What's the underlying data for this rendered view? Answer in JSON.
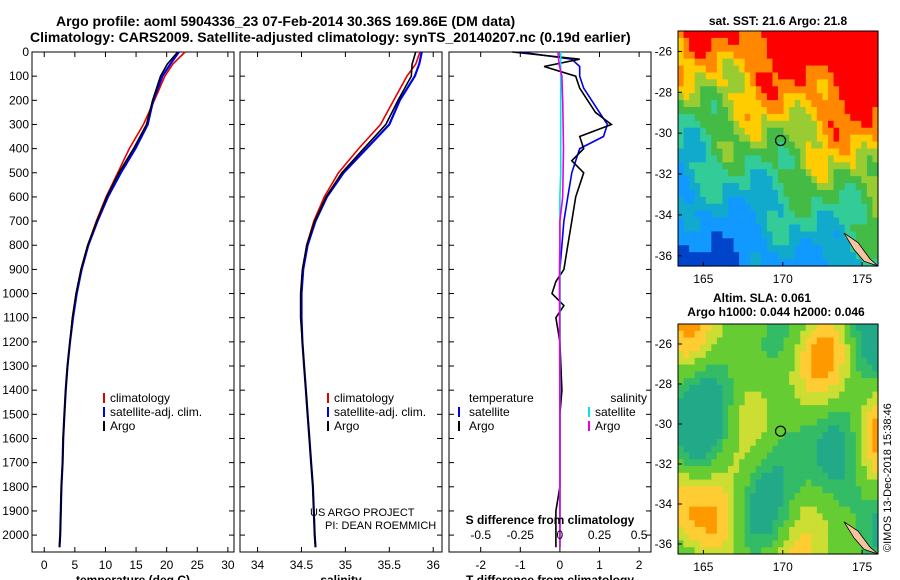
{
  "header": {
    "line1": "Argo profile: aoml 5904336_23 07-Feb-2014 30.36S 169.86E (DM data)",
    "line2": "Climatology: CARS2009. Satellite-adjusted climatology: synTS_20140207.nc (0.19d earlier)"
  },
  "colors": {
    "climatology": "#e60000",
    "satellite": "#0000ee",
    "argo": "#000000",
    "salinity_satellite": "#00e5e5",
    "salinity_argo": "#e600e6"
  },
  "credit": {
    "line1": "US ARGO PROJECT",
    "line2": "PI: DEAN ROEMMICH"
  },
  "sst_map": {
    "title": "sat. SST: 21.6 Argo: 21.8"
  },
  "sla_map": {
    "title1": "Altim. SLA: 0.061",
    "title2": "Argo h1000: 0.044 h2000: 0.046"
  },
  "map_axes": {
    "lat_ticks": [
      "-26",
      "-28",
      "-30",
      "-32",
      "-34",
      "-36"
    ],
    "lon_ticks": [
      "165",
      "170",
      "175"
    ]
  },
  "watermark": "©IMOS 13-Dec-2018 15:38:46",
  "chart_data": [
    {
      "type": "line",
      "name": "temperature",
      "xlabel": "temperature (deg C)",
      "ylabel": "",
      "xlim": [
        -2,
        31
      ],
      "ylim": [
        2070,
        0
      ],
      "xticks": [
        0,
        5,
        10,
        15,
        20,
        25,
        30
      ],
      "yticks": [
        0,
        100,
        200,
        300,
        400,
        500,
        600,
        700,
        800,
        900,
        1000,
        1100,
        1200,
        1300,
        1400,
        1500,
        1600,
        1700,
        1800,
        1900,
        2000
      ],
      "legend": [
        "climatology",
        "satellite-adj. clim.",
        "Argo"
      ],
      "series": [
        {
          "name": "climatology",
          "color": "#e60000",
          "depth": [
            0,
            50,
            100,
            200,
            300,
            400,
            500,
            600,
            700,
            800,
            900,
            1000,
            1100,
            1200,
            1300,
            1400,
            1500,
            1600,
            1700,
            1800,
            1900,
            2000,
            2050
          ],
          "values": [
            23.0,
            21.0,
            19.7,
            18.0,
            16.2,
            13.9,
            12.0,
            10.1,
            8.5,
            7.1,
            6.0,
            5.2,
            4.6,
            4.2,
            3.8,
            3.5,
            3.3,
            3.1,
            3.0,
            2.8,
            2.7,
            2.6,
            2.5
          ]
        },
        {
          "name": "satellite-adj. clim.",
          "color": "#0000ee",
          "depth": [
            0,
            50,
            100,
            200,
            300,
            400,
            500,
            600,
            700,
            800,
            900,
            1000,
            1100,
            1200,
            1300,
            1400,
            1500,
            1600,
            1700,
            1800,
            1900,
            2000,
            2050
          ],
          "values": [
            22.0,
            20.6,
            19.3,
            17.8,
            16.9,
            14.9,
            12.5,
            10.4,
            8.7,
            7.2,
            6.1,
            5.3,
            4.7,
            4.2,
            3.8,
            3.5,
            3.3,
            3.1,
            3.0,
            2.8,
            2.7,
            2.6,
            2.5
          ]
        },
        {
          "name": "Argo",
          "color": "#000000",
          "depth": [
            0,
            50,
            100,
            200,
            300,
            400,
            500,
            600,
            700,
            800,
            900,
            1000,
            1100,
            1200,
            1300,
            1400,
            1500,
            1600,
            1700,
            1800,
            1900,
            2000,
            2050
          ],
          "values": [
            21.8,
            20.1,
            19.0,
            17.7,
            16.7,
            14.6,
            12.2,
            10.2,
            8.6,
            7.1,
            6.0,
            5.2,
            4.6,
            4.2,
            3.8,
            3.5,
            3.3,
            3.1,
            3.0,
            2.8,
            2.7,
            2.6,
            2.5
          ]
        }
      ]
    },
    {
      "type": "line",
      "name": "salinity",
      "xlabel": "salinity",
      "ylabel": "",
      "xlim": [
        33.8,
        36.1
      ],
      "ylim": [
        2070,
        0
      ],
      "xticks": [
        34,
        34.5,
        35,
        35.5,
        36
      ],
      "legend": [
        "climatology",
        "satellite-adj. clim.",
        "Argo"
      ],
      "series": [
        {
          "name": "climatology",
          "color": "#e60000",
          "depth": [
            0,
            50,
            100,
            200,
            300,
            400,
            500,
            600,
            700,
            800,
            900,
            1000,
            1100,
            1200,
            1300,
            1400,
            1500,
            1600,
            1700,
            1800,
            1900,
            2000,
            2050
          ],
          "values": [
            35.85,
            35.8,
            35.7,
            35.55,
            35.4,
            35.15,
            34.92,
            34.76,
            34.64,
            34.56,
            34.52,
            34.5,
            34.5,
            34.51,
            34.53,
            34.55,
            34.57,
            34.59,
            34.61,
            34.63,
            34.64,
            34.65,
            34.66
          ]
        },
        {
          "name": "satellite-adj. clim.",
          "color": "#0000ee",
          "depth": [
            0,
            50,
            100,
            200,
            300,
            400,
            500,
            600,
            700,
            800,
            900,
            1000,
            1100,
            1200,
            1300,
            1400,
            1500,
            1600,
            1700,
            1800,
            1900,
            2000,
            2050
          ],
          "values": [
            35.87,
            35.84,
            35.79,
            35.62,
            35.5,
            35.24,
            34.98,
            34.79,
            34.66,
            34.57,
            34.52,
            34.5,
            34.5,
            34.51,
            34.53,
            34.55,
            34.57,
            34.59,
            34.61,
            34.63,
            34.64,
            34.65,
            34.66
          ]
        },
        {
          "name": "Argo",
          "color": "#000000",
          "depth": [
            0,
            50,
            100,
            200,
            300,
            400,
            500,
            600,
            700,
            800,
            900,
            1000,
            1100,
            1200,
            1300,
            1400,
            1500,
            1600,
            1700,
            1800,
            1900,
            2000,
            2050
          ],
          "values": [
            35.8,
            35.76,
            35.75,
            35.6,
            35.46,
            35.21,
            34.96,
            34.78,
            34.65,
            34.56,
            34.51,
            34.49,
            34.49,
            34.51,
            34.53,
            34.55,
            34.57,
            34.59,
            34.61,
            34.63,
            34.64,
            34.65,
            34.66
          ]
        }
      ]
    },
    {
      "type": "line",
      "name": "difference",
      "xlabel": "T difference from climatology",
      "xlabel_top": "S difference from climatology",
      "xlim": [
        -2.8,
        2.3
      ],
      "ylim": [
        2070,
        0
      ],
      "xticks": [
        -2,
        -1,
        0,
        1,
        2
      ],
      "xticks_s": [
        "-0.5",
        "-0.25",
        "0",
        "0.25",
        "0.5"
      ],
      "legend_temperature_title": "temperature",
      "legend_salinity_title": "salinity",
      "legend_temperature": [
        "satellite",
        "Argo"
      ],
      "legend_salinity": [
        "satellite",
        "Argo"
      ],
      "series": [
        {
          "name": "T satellite",
          "color": "#0000ee",
          "depth": [
            0,
            30,
            60,
            100,
            150,
            200,
            250,
            300,
            350,
            400,
            500,
            600,
            700,
            800,
            900,
            1000,
            1200,
            1500,
            2000,
            2050
          ],
          "values": [
            -1.0,
            0.3,
            0.5,
            0.5,
            0.6,
            0.8,
            1.0,
            1.2,
            1.1,
            0.5,
            0.3,
            0.2,
            0.1,
            0.05,
            0.0,
            0.0,
            0.0,
            0.0,
            0.0,
            0.0
          ]
        },
        {
          "name": "T Argo",
          "color": "#000000",
          "depth": [
            0,
            30,
            60,
            100,
            150,
            200,
            250,
            300,
            350,
            400,
            450,
            500,
            600,
            700,
            800,
            900,
            950,
            1000,
            1050,
            1100,
            1200,
            1400,
            1500,
            1600,
            1700,
            1800,
            1900,
            2000,
            2050
          ],
          "values": [
            -1.2,
            0.5,
            -0.4,
            0.4,
            0.5,
            0.7,
            0.9,
            1.3,
            0.5,
            0.6,
            0.3,
            0.6,
            0.4,
            0.3,
            0.2,
            0.1,
            -0.1,
            -0.2,
            0.1,
            -0.1,
            0.0,
            0.05,
            0.0,
            0.0,
            0.0,
            0.0,
            -0.1,
            -0.1,
            -0.1
          ]
        },
        {
          "name": "S satellite",
          "color": "#00e5e5",
          "depth": [
            0,
            100,
            200,
            300,
            400,
            500,
            600,
            800,
            1000,
            1500,
            2000,
            2050
          ],
          "values": [
            0.02,
            0.02,
            0.02,
            0.02,
            0.02,
            0.02,
            0.0,
            0.0,
            0.0,
            0.0,
            0.0,
            0.0
          ]
        },
        {
          "name": "S Argo",
          "color": "#e600e6",
          "depth": [
            0,
            50,
            100,
            200,
            300,
            400,
            500,
            600,
            700,
            800,
            900,
            1000,
            1500,
            2000,
            2050
          ],
          "values": [
            -0.05,
            -0.02,
            0.05,
            0.07,
            0.08,
            0.09,
            0.08,
            0.07,
            0.0,
            0.0,
            -0.01,
            -0.01,
            0.0,
            0.0,
            0.0
          ]
        }
      ]
    }
  ]
}
